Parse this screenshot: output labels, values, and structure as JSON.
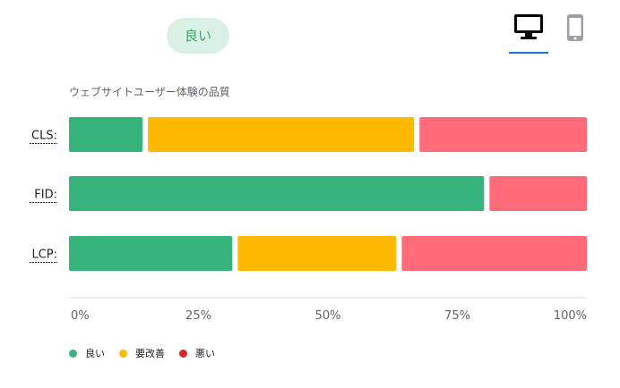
{
  "status": {
    "label": "良い",
    "color": "#37a565"
  },
  "device_tabs": [
    {
      "name": "desktop-icon",
      "selected": true
    },
    {
      "name": "mobile-icon",
      "selected": false
    }
  ],
  "chart_data": {
    "type": "bar",
    "orientation": "horizontal",
    "stacked": true,
    "title": "ウェブサイトユーザー体験の品質",
    "categories": [
      "CLS:",
      "FID:",
      "LCP:"
    ],
    "series": [
      {
        "name": "良い",
        "color": "#37b37e",
        "values": [
          14.5,
          81.0,
          32.2
        ]
      },
      {
        "name": "要改善",
        "color": "#ffb900",
        "values": [
          52.5,
          0,
          31.3
        ]
      },
      {
        "name": "悪い",
        "color": "#ff6b78",
        "values": [
          33.0,
          19.0,
          36.5
        ]
      }
    ],
    "x_ticks": [
      "0%",
      "25%",
      "50%",
      "75%",
      "100%"
    ],
    "xlim": [
      0,
      100
    ],
    "legend_position": "bottom"
  }
}
